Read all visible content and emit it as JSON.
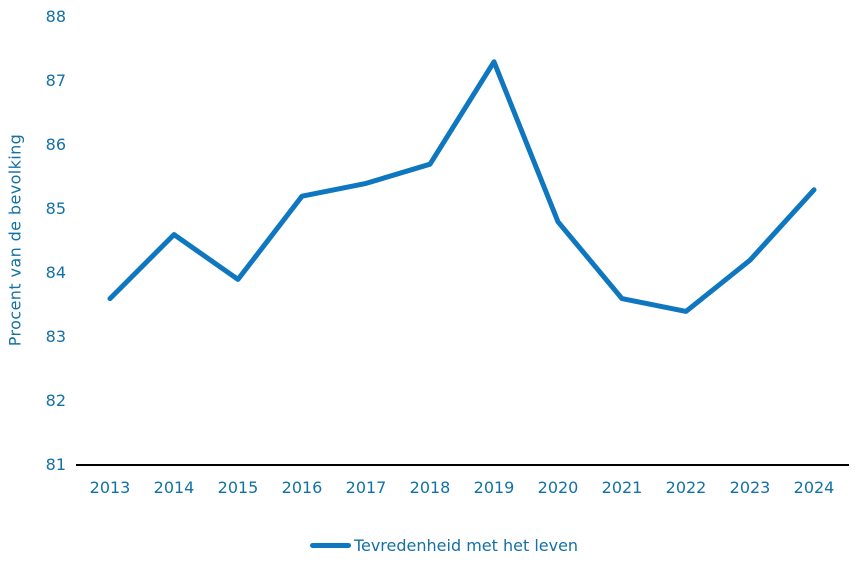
{
  "chart_data": {
    "type": "line",
    "title": "",
    "x": [
      2013,
      2014,
      2015,
      2016,
      2017,
      2018,
      2019,
      2020,
      2021,
      2022,
      2023,
      2024
    ],
    "series": [
      {
        "name": "Tevredenheid met het leven",
        "values": [
          83.6,
          84.6,
          83.9,
          85.2,
          85.4,
          85.7,
          87.3,
          84.8,
          83.6,
          83.4,
          84.2,
          85.3
        ]
      }
    ],
    "xlabel": "",
    "ylabel": "Procent van de bevolking",
    "ylim": [
      81,
      88
    ],
    "y_ticks": [
      81,
      82,
      83,
      84,
      85,
      86,
      87,
      88
    ],
    "grid": false,
    "legend_position": "bottom"
  },
  "colors": {
    "line": "#0f77c0",
    "text": "#1371a5",
    "axis": "#000000",
    "background": "#ffffff"
  }
}
